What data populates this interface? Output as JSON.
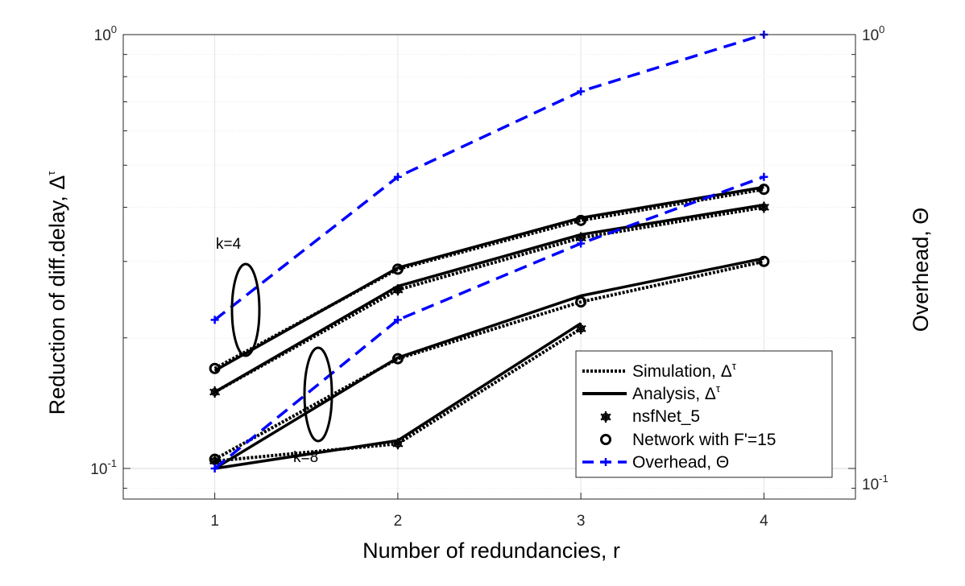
{
  "chart_data": {
    "type": "line",
    "xlabel": "Number of redundancies, r",
    "ylabel": "Reduction of diff.delay, Δ",
    "ylabel_sup": "τ",
    "y2label": "Overhead, Θ",
    "x_ticks": [
      "1",
      "2",
      "3",
      "4"
    ],
    "xlim": [
      0.5,
      4.5
    ],
    "ylim": [
      0.085,
      1.0
    ],
    "yscale": "log",
    "y_ticks": [
      {
        "base": "10",
        "exp": "0",
        "value": 1.0
      },
      {
        "base": "10",
        "exp": "-1",
        "value": 0.1
      }
    ],
    "y2lim": [
      0.085,
      1.0
    ],
    "y2scale": "log",
    "y2_ticks": [
      {
        "base": "10",
        "exp": "0",
        "value": 1.0
      },
      {
        "base": "10",
        "exp": "-1",
        "value": 0.1
      }
    ],
    "grid": true,
    "legend_position": "bottom-right",
    "legend": [
      {
        "label": "Simulation, Δ",
        "sup": "τ",
        "style": "dotted-black"
      },
      {
        "label": "Analysis, Δ",
        "sup": "τ",
        "style": "solid-black"
      },
      {
        "label": "nsfNet_5",
        "style": "marker-star"
      },
      {
        "label": "Network with F'=15",
        "style": "marker-circle"
      },
      {
        "label": "Overhead, Θ",
        "style": "dashed-blue-plus"
      }
    ],
    "annotations": [
      {
        "text": "k=4"
      },
      {
        "text": "k=8"
      }
    ],
    "series": [
      {
        "group": "analysis",
        "x": [
          1,
          2,
          3,
          4
        ],
        "y": [
          0.168,
          0.29,
          0.378,
          0.445
        ]
      },
      {
        "group": "analysis",
        "x": [
          1,
          2,
          3,
          4
        ],
        "y": [
          0.15,
          0.263,
          0.346,
          0.405
        ]
      },
      {
        "group": "analysis",
        "x": [
          1,
          2,
          3,
          4
        ],
        "y": [
          0.1,
          0.18,
          0.25,
          0.305
        ]
      },
      {
        "group": "analysis",
        "x": [
          1,
          2,
          3
        ],
        "y": [
          0.1,
          0.116,
          0.216
        ]
      },
      {
        "group": "simulation",
        "marker": "circle",
        "x": [
          1,
          2,
          3,
          4
        ],
        "y": [
          0.17,
          0.288,
          0.373,
          0.44
        ]
      },
      {
        "group": "simulation",
        "marker": "star",
        "x": [
          1,
          2,
          3,
          4
        ],
        "y": [
          0.15,
          0.258,
          0.34,
          0.4
        ]
      },
      {
        "group": "simulation",
        "marker": "circle",
        "x": [
          1,
          2,
          3,
          4
        ],
        "y": [
          0.105,
          0.179,
          0.242,
          0.3
        ]
      },
      {
        "group": "simulation",
        "marker": "star",
        "x": [
          1,
          2,
          3
        ],
        "y": [
          0.104,
          0.114,
          0.21
        ]
      },
      {
        "group": "overhead",
        "x": [
          1,
          2,
          3,
          4
        ],
        "y": [
          0.22,
          0.47,
          0.74,
          1.0
        ]
      },
      {
        "group": "overhead",
        "x": [
          1,
          2,
          3,
          4
        ],
        "y": [
          0.1,
          0.22,
          0.33,
          0.47
        ]
      }
    ],
    "colors": {
      "analysis": "#000000",
      "simulation": "#000000",
      "overhead": "#0000ff",
      "grid": "#e3e3e3",
      "axis": "#262626"
    }
  }
}
